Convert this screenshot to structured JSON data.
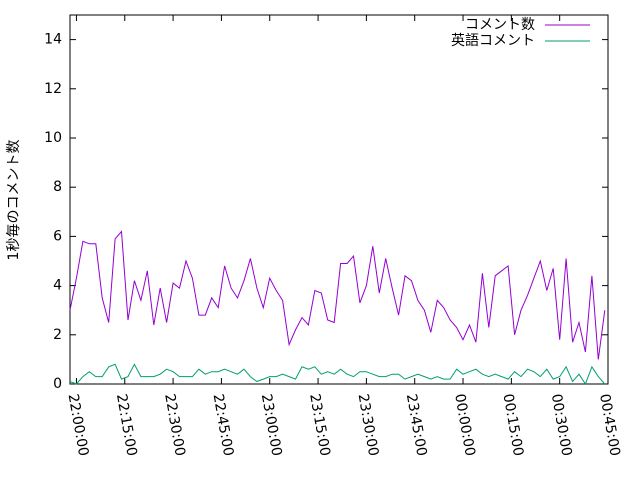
{
  "chart_data": {
    "type": "line",
    "ylabel": "1秒毎のコメント数",
    "x": [
      "21:58:00",
      "22:00:00",
      "22:02:00",
      "22:04:00",
      "22:06:00",
      "22:08:00",
      "22:10:00",
      "22:12:00",
      "22:14:00",
      "22:16:00",
      "22:18:00",
      "22:20:00",
      "22:22:00",
      "22:24:00",
      "22:26:00",
      "22:28:00",
      "22:30:00",
      "22:32:00",
      "22:34:00",
      "22:36:00",
      "22:38:00",
      "22:40:00",
      "22:42:00",
      "22:44:00",
      "22:46:00",
      "22:48:00",
      "22:50:00",
      "22:52:00",
      "22:54:00",
      "22:56:00",
      "22:58:00",
      "23:00:00",
      "23:02:00",
      "23:04:00",
      "23:06:00",
      "23:08:00",
      "23:10:00",
      "23:12:00",
      "23:14:00",
      "23:16:00",
      "23:18:00",
      "23:20:00",
      "23:22:00",
      "23:24:00",
      "23:26:00",
      "23:28:00",
      "23:30:00",
      "23:32:00",
      "23:34:00",
      "23:36:00",
      "23:38:00",
      "23:40:00",
      "23:42:00",
      "23:44:00",
      "23:46:00",
      "23:48:00",
      "23:50:00",
      "23:52:00",
      "23:54:00",
      "23:56:00",
      "23:58:00",
      "00:00:00",
      "00:02:00",
      "00:04:00",
      "00:06:00",
      "00:08:00",
      "00:10:00",
      "00:12:00",
      "00:14:00",
      "00:16:00",
      "00:18:00",
      "00:20:00",
      "00:22:00",
      "00:24:00",
      "00:26:00",
      "00:28:00",
      "00:30:00",
      "00:32:00",
      "00:34:00",
      "00:36:00",
      "00:38:00",
      "00:40:00",
      "00:42:00",
      "00:44:00"
    ],
    "series": [
      {
        "name": "コメント数",
        "color": "#9400d3",
        "values": [
          3.0,
          4.3,
          5.8,
          5.7,
          5.7,
          3.5,
          2.5,
          5.9,
          6.2,
          2.6,
          4.2,
          3.4,
          4.6,
          2.4,
          3.9,
          2.5,
          4.1,
          3.9,
          5.0,
          4.3,
          2.8,
          2.8,
          3.5,
          3.1,
          4.8,
          3.9,
          3.5,
          4.2,
          5.1,
          3.9,
          3.1,
          4.3,
          3.8,
          3.4,
          1.6,
          2.2,
          2.7,
          2.4,
          3.8,
          3.7,
          2.6,
          2.5,
          4.9,
          4.9,
          5.2,
          3.3,
          4.0,
          5.6,
          3.7,
          5.1,
          3.9,
          2.8,
          4.4,
          4.2,
          3.4,
          3.0,
          2.1,
          3.4,
          3.1,
          2.6,
          2.3,
          1.8,
          2.4,
          1.7,
          4.5,
          2.3,
          4.4,
          4.6,
          4.8,
          2.0,
          3.0,
          3.6,
          4.3,
          5.0,
          3.8,
          4.7,
          1.8,
          5.1,
          1.7,
          2.5,
          1.3,
          4.4,
          1.0,
          3.0
        ]
      },
      {
        "name": "英語コメント",
        "color": "#009e73",
        "values": [
          0.1,
          0.0,
          0.3,
          0.5,
          0.3,
          0.3,
          0.7,
          0.8,
          0.2,
          0.3,
          0.8,
          0.3,
          0.3,
          0.3,
          0.4,
          0.6,
          0.5,
          0.3,
          0.3,
          0.3,
          0.6,
          0.4,
          0.5,
          0.5,
          0.6,
          0.5,
          0.4,
          0.6,
          0.3,
          0.1,
          0.2,
          0.3,
          0.3,
          0.4,
          0.3,
          0.2,
          0.7,
          0.6,
          0.7,
          0.4,
          0.5,
          0.4,
          0.6,
          0.4,
          0.3,
          0.5,
          0.5,
          0.4,
          0.3,
          0.3,
          0.4,
          0.4,
          0.2,
          0.3,
          0.4,
          0.3,
          0.2,
          0.3,
          0.2,
          0.2,
          0.6,
          0.4,
          0.5,
          0.6,
          0.4,
          0.3,
          0.4,
          0.3,
          0.2,
          0.5,
          0.3,
          0.6,
          0.5,
          0.3,
          0.6,
          0.2,
          0.3,
          0.7,
          0.1,
          0.4,
          0.0,
          0.7,
          0.3,
          0.0
        ]
      }
    ],
    "xlim": [
      "21:58:00",
      "00:45:00"
    ],
    "xticks": [
      "22:00:00",
      "22:15:00",
      "22:30:00",
      "22:45:00",
      "23:00:00",
      "23:15:00",
      "23:30:00",
      "23:45:00",
      "00:00:00",
      "00:15:00",
      "00:30:00",
      "00:45:00"
    ],
    "ylim": [
      0,
      15
    ],
    "yticks": [
      0,
      2,
      4,
      6,
      8,
      10,
      12,
      14
    ],
    "legend": "top-right"
  }
}
